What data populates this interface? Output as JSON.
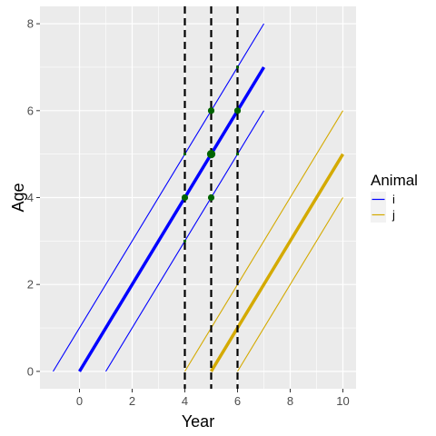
{
  "chart_data": {
    "type": "line",
    "xlabel": "Year",
    "ylabel": "Age",
    "xlim": [
      -1.5,
      10.5
    ],
    "ylim": [
      -0.4,
      8.4
    ],
    "x_ticks": [
      0,
      2,
      4,
      6,
      8,
      10
    ],
    "y_ticks": [
      0,
      2,
      4,
      6,
      8
    ],
    "x_tick_labels": [
      "0",
      "2",
      "4",
      "6",
      "8",
      "10"
    ],
    "y_tick_labels": [
      "0",
      "2",
      "4",
      "6",
      "8"
    ],
    "grid": true,
    "legend": {
      "title": "Animal",
      "placement": "right",
      "entries": [
        {
          "label": "i",
          "color": "#0000ff"
        },
        {
          "label": "j",
          "color": "#d4aa00"
        }
      ]
    },
    "series": [
      {
        "name": "i",
        "role": "main",
        "color": "#0000ff",
        "x": [
          0,
          7
        ],
        "y": [
          0,
          7
        ]
      },
      {
        "name": "i",
        "role": "upper",
        "color": "#0000ff",
        "x": [
          -1,
          7
        ],
        "y": [
          0,
          8
        ]
      },
      {
        "name": "i",
        "role": "lower",
        "color": "#0000ff",
        "x": [
          1,
          7
        ],
        "y": [
          0,
          6
        ]
      },
      {
        "name": "j",
        "role": "main",
        "color": "#d4aa00",
        "x": [
          5,
          10
        ],
        "y": [
          0,
          5
        ]
      },
      {
        "name": "j",
        "role": "upper",
        "color": "#d4aa00",
        "x": [
          4,
          10
        ],
        "y": [
          0,
          6
        ]
      },
      {
        "name": "j",
        "role": "lower",
        "color": "#d4aa00",
        "x": [
          6,
          10
        ],
        "y": [
          0,
          4
        ]
      }
    ],
    "vlines": [
      4,
      5,
      6
    ],
    "points": [
      {
        "x": 4,
        "y": 4,
        "size": "medium"
      },
      {
        "x": 5,
        "y": 5,
        "size": "large"
      },
      {
        "x": 5,
        "y": 6,
        "size": "medium"
      },
      {
        "x": 5,
        "y": 4,
        "size": "medium"
      },
      {
        "x": 6,
        "y": 6,
        "size": "medium"
      },
      {
        "x": 4,
        "y": 5,
        "size": "small"
      },
      {
        "x": 4,
        "y": 3,
        "size": "small"
      },
      {
        "x": 6,
        "y": 7,
        "size": "small"
      },
      {
        "x": 6,
        "y": 5,
        "size": "small"
      }
    ],
    "colors": {
      "panel": "#ebebeb",
      "grid_major": "#ffffff",
      "points": "#006400",
      "vline": "#000000"
    }
  }
}
